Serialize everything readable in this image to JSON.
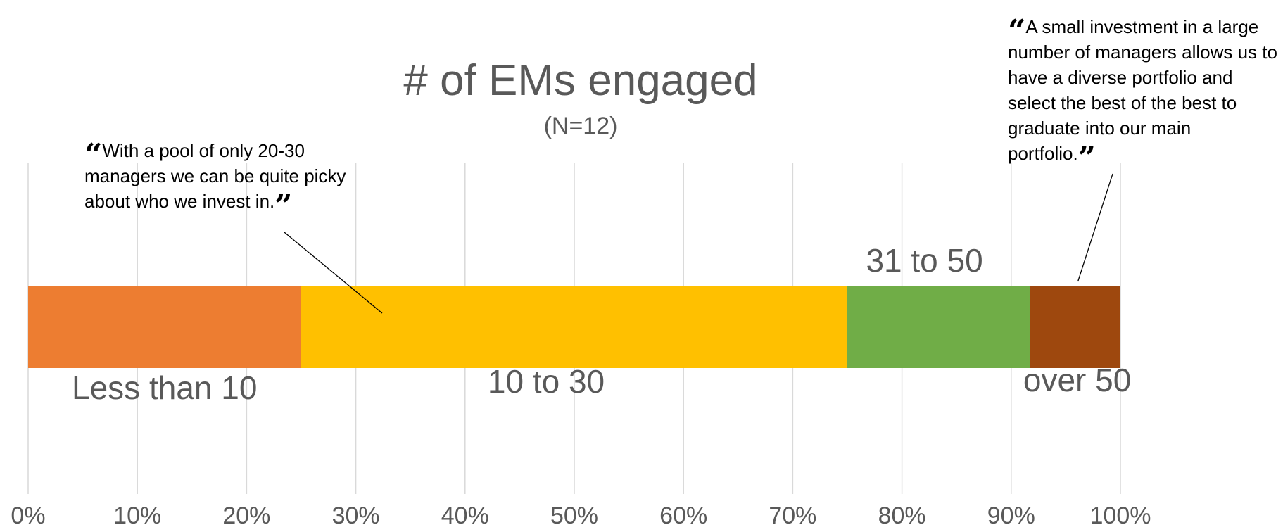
{
  "chart_data": {
    "type": "bar",
    "orientation": "horizontal",
    "stacked": true,
    "percent_stacked": true,
    "title": "# of EMs engaged",
    "subtitle": "(N=12)",
    "categories": [
      ""
    ],
    "series": [
      {
        "name": "Less than 10",
        "values": [
          25.0
        ],
        "color": "#ED7D31"
      },
      {
        "name": "10 to 30",
        "values": [
          50.0
        ],
        "color": "#FFC000"
      },
      {
        "name": "31 to 50",
        "values": [
          16.7
        ],
        "color": "#70AD47"
      },
      {
        "name": "over 50",
        "values": [
          8.3
        ],
        "color": "#9E480E"
      }
    ],
    "xlim": [
      0,
      100
    ],
    "x_ticks": [
      "0%",
      "10%",
      "20%",
      "30%",
      "40%",
      "50%",
      "60%",
      "70%",
      "80%",
      "90%",
      "100%"
    ],
    "grid": true,
    "legend": "none",
    "annotations": [
      {
        "target_series": "10 to 30",
        "open_mark": "“",
        "text": "With a pool of only 20-30 managers we can be quite picky about who we invest in.",
        "close_mark": "”"
      },
      {
        "target_series": "over 50",
        "open_mark": "“",
        "text": "A small investment in a large number of managers allows us to have a diverse portfolio and select the best of the best to graduate into our main portfolio.",
        "close_mark": "”"
      }
    ]
  },
  "colors": {
    "grid": "#D9D9D9",
    "text": "#595959",
    "leader_line": "#000000"
  }
}
